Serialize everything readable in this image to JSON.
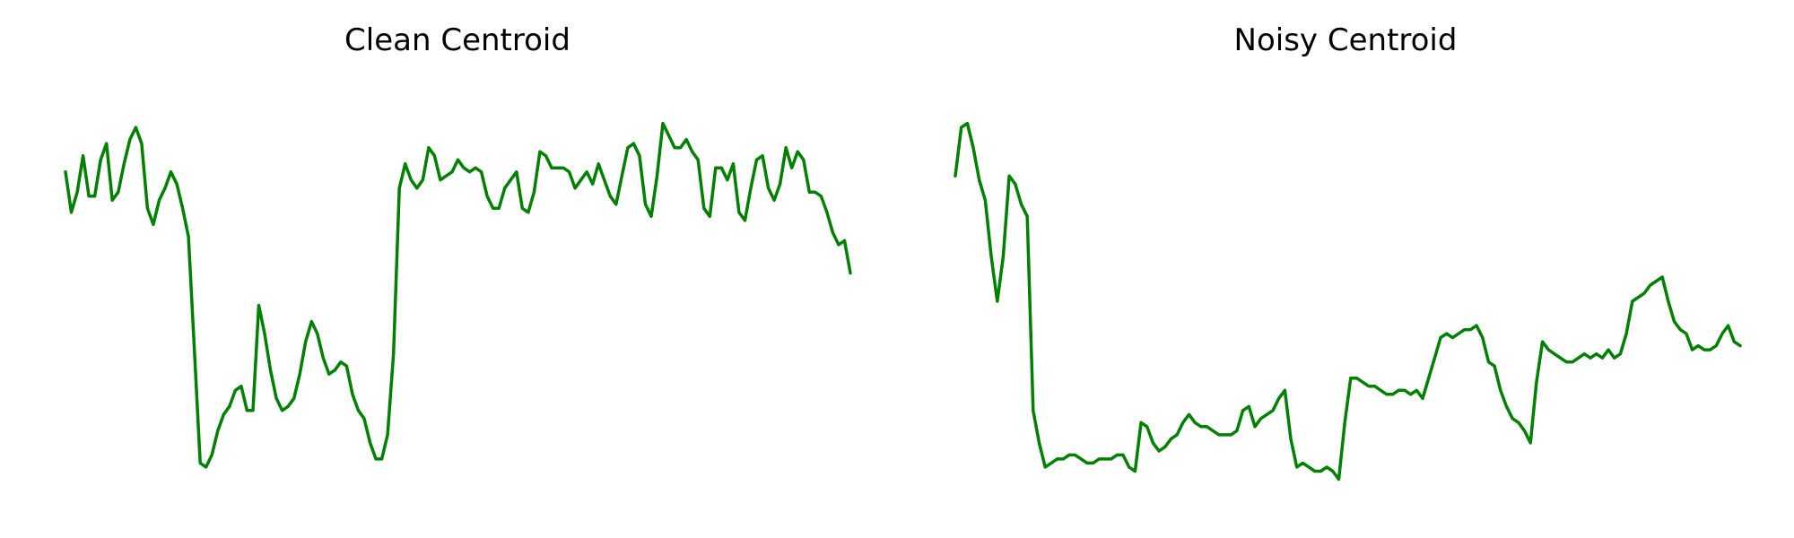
{
  "chart_data": [
    {
      "type": "line",
      "title": "Clean Centroid",
      "xlabel": "",
      "ylabel": "",
      "grid": false,
      "axes_visible": false,
      "color": "#008000",
      "series": [
        {
          "values": [
            0.79,
            0.69,
            0.74,
            0.83,
            0.73,
            0.73,
            0.82,
            0.86,
            0.72,
            0.74,
            0.81,
            0.87,
            0.9,
            0.86,
            0.7,
            0.66,
            0.72,
            0.75,
            0.79,
            0.76,
            0.7,
            0.63,
            0.35,
            0.07,
            0.06,
            0.09,
            0.15,
            0.19,
            0.21,
            0.25,
            0.26,
            0.2,
            0.2,
            0.46,
            0.39,
            0.3,
            0.23,
            0.2,
            0.21,
            0.23,
            0.29,
            0.37,
            0.42,
            0.39,
            0.33,
            0.29,
            0.3,
            0.32,
            0.31,
            0.24,
            0.2,
            0.18,
            0.12,
            0.08,
            0.08,
            0.14,
            0.34,
            0.75,
            0.81,
            0.77,
            0.75,
            0.77,
            0.85,
            0.83,
            0.77,
            0.78,
            0.79,
            0.82,
            0.8,
            0.79,
            0.8,
            0.79,
            0.73,
            0.7,
            0.7,
            0.75,
            0.77,
            0.79,
            0.7,
            0.69,
            0.74,
            0.84,
            0.83,
            0.8,
            0.8,
            0.8,
            0.79,
            0.75,
            0.77,
            0.79,
            0.76,
            0.81,
            0.77,
            0.73,
            0.71,
            0.78,
            0.85,
            0.86,
            0.83,
            0.71,
            0.68,
            0.78,
            0.91,
            0.88,
            0.85,
            0.85,
            0.87,
            0.84,
            0.82,
            0.7,
            0.68,
            0.8,
            0.8,
            0.77,
            0.81,
            0.69,
            0.67,
            0.75,
            0.82,
            0.83,
            0.75,
            0.72,
            0.76,
            0.85,
            0.8,
            0.84,
            0.82,
            0.74,
            0.74,
            0.73,
            0.69,
            0.64,
            0.61,
            0.62,
            0.54
          ]
        }
      ]
    },
    {
      "type": "line",
      "title": "Noisy Centroid",
      "xlabel": "",
      "ylabel": "",
      "grid": false,
      "axes_visible": false,
      "color": "#008000",
      "series": [
        {
          "values": [
            0.78,
            0.9,
            0.91,
            0.85,
            0.77,
            0.72,
            0.58,
            0.47,
            0.58,
            0.78,
            0.76,
            0.71,
            0.68,
            0.2,
            0.12,
            0.06,
            0.07,
            0.08,
            0.08,
            0.09,
            0.09,
            0.08,
            0.07,
            0.07,
            0.08,
            0.08,
            0.08,
            0.09,
            0.09,
            0.06,
            0.05,
            0.17,
            0.16,
            0.12,
            0.1,
            0.11,
            0.13,
            0.14,
            0.17,
            0.19,
            0.17,
            0.16,
            0.16,
            0.15,
            0.14,
            0.14,
            0.14,
            0.15,
            0.2,
            0.21,
            0.16,
            0.18,
            0.19,
            0.2,
            0.23,
            0.25,
            0.13,
            0.06,
            0.07,
            0.06,
            0.05,
            0.05,
            0.06,
            0.05,
            0.03,
            0.17,
            0.28,
            0.28,
            0.27,
            0.26,
            0.26,
            0.25,
            0.24,
            0.24,
            0.25,
            0.25,
            0.24,
            0.25,
            0.23,
            0.28,
            0.33,
            0.38,
            0.39,
            0.38,
            0.39,
            0.4,
            0.4,
            0.41,
            0.38,
            0.32,
            0.31,
            0.25,
            0.21,
            0.18,
            0.17,
            0.15,
            0.12,
            0.27,
            0.37,
            0.35,
            0.34,
            0.33,
            0.32,
            0.32,
            0.33,
            0.34,
            0.33,
            0.34,
            0.33,
            0.35,
            0.33,
            0.34,
            0.39,
            0.47,
            0.48,
            0.49,
            0.51,
            0.52,
            0.53,
            0.47,
            0.42,
            0.4,
            0.39,
            0.35,
            0.36,
            0.35,
            0.35,
            0.36,
            0.39,
            0.41,
            0.37,
            0.36
          ]
        }
      ]
    }
  ]
}
